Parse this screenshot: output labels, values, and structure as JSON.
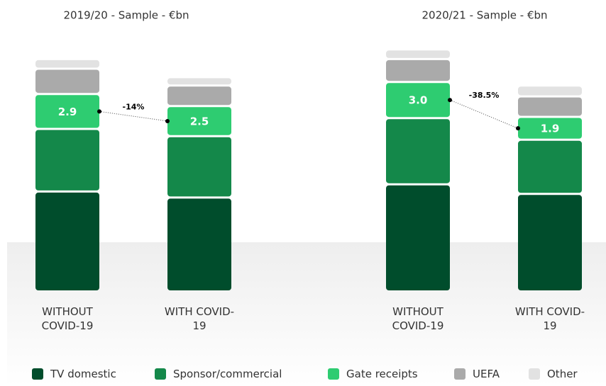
{
  "chart_data": [
    {
      "type": "bar",
      "stacked": true,
      "title": "2019/20 - Sample - €bn",
      "categories": [
        "WITHOUT COVID-19",
        "WITH COVID-19"
      ],
      "series": [
        {
          "name": "TV domestic",
          "color": "#004d2c",
          "values": [
            8.3,
            7.8
          ]
        },
        {
          "name": "Sponsor/commercial",
          "color": "#14884a",
          "values": [
            5.2,
            5.1
          ]
        },
        {
          "name": "Gate receipts",
          "color": "#2ecc71",
          "values": [
            2.9,
            2.5
          ],
          "value_labels": [
            "2.9",
            "2.5"
          ]
        },
        {
          "name": "UEFA",
          "color": "#aaaaaa",
          "values": [
            2.1,
            1.7
          ]
        },
        {
          "name": "Other",
          "color": "#e2e2e2",
          "values": [
            0.8,
            0.7
          ]
        }
      ],
      "annotation": "-14%"
    },
    {
      "type": "bar",
      "stacked": true,
      "title": "2020/21 - Sample - €bn",
      "categories": [
        "WITHOUT COVID-19",
        "WITH COVID-19"
      ],
      "series": [
        {
          "name": "TV domestic",
          "color": "#004d2c",
          "values": [
            8.9,
            8.1
          ]
        },
        {
          "name": "Sponsor/commercial",
          "color": "#14884a",
          "values": [
            5.5,
            4.5
          ]
        },
        {
          "name": "Gate receipts",
          "color": "#2ecc71",
          "values": [
            3.0,
            1.9
          ],
          "value_labels": [
            "3.0",
            "1.9"
          ]
        },
        {
          "name": "UEFA",
          "color": "#aaaaaa",
          "values": [
            1.9,
            1.7
          ]
        },
        {
          "name": "Other",
          "color": "#e2e2e2",
          "values": [
            0.8,
            0.9
          ]
        }
      ],
      "annotation": "-38.5%"
    }
  ]
}
